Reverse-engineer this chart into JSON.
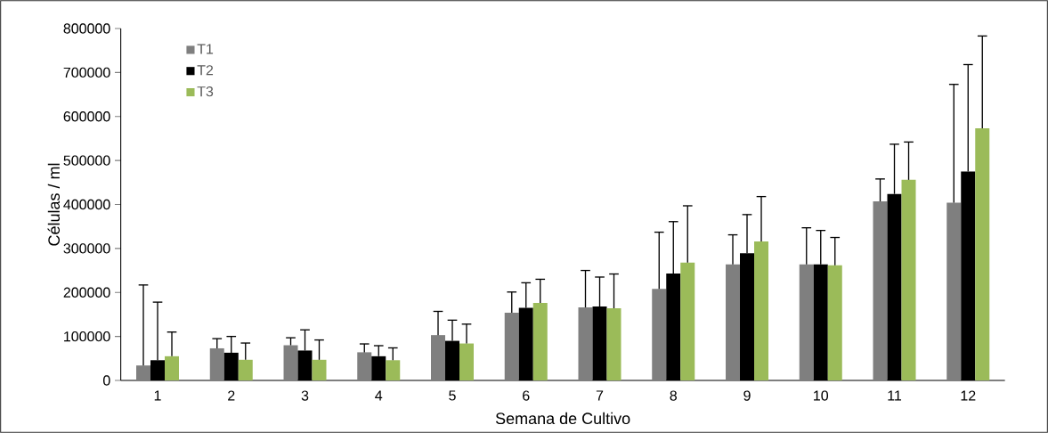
{
  "chart_data": {
    "type": "bar",
    "xlabel": "Semana de Cultivo",
    "ylabel": "Células / ml",
    "categories": [
      "1",
      "2",
      "3",
      "4",
      "5",
      "6",
      "7",
      "8",
      "9",
      "10",
      "11",
      "12"
    ],
    "ylim": [
      0,
      800000
    ],
    "yticks": [
      0,
      100000,
      200000,
      300000,
      400000,
      500000,
      600000,
      700000,
      800000
    ],
    "legend": "top left",
    "grid": false,
    "series": [
      {
        "name": "T1",
        "color": "#7f7f7f",
        "values": [
          34000,
          73000,
          80000,
          64000,
          103000,
          154000,
          166000,
          208000,
          264000,
          264000,
          407000,
          404000
        ],
        "errors": [
          [
            34000,
            217000
          ],
          [
            73000,
            95000
          ],
          [
            80000,
            97000
          ],
          [
            64000,
            83000
          ],
          [
            103000,
            157000
          ],
          [
            154000,
            201000
          ],
          [
            166000,
            250000
          ],
          [
            208000,
            337000
          ],
          [
            264000,
            331000
          ],
          [
            264000,
            347000
          ],
          [
            407000,
            458000
          ],
          [
            404000,
            673000
          ]
        ]
      },
      {
        "name": "T2",
        "color": "#000000",
        "values": [
          46000,
          63000,
          68000,
          55000,
          90000,
          165000,
          168000,
          243000,
          289000,
          264000,
          424000,
          475000
        ],
        "errors": [
          [
            46000,
            178000
          ],
          [
            63000,
            100000
          ],
          [
            68000,
            115000
          ],
          [
            55000,
            79000
          ],
          [
            90000,
            137000
          ],
          [
            165000,
            222000
          ],
          [
            168000,
            235000
          ],
          [
            243000,
            361000
          ],
          [
            289000,
            377000
          ],
          [
            264000,
            341000
          ],
          [
            424000,
            537000
          ],
          [
            475000,
            718000
          ]
        ]
      },
      {
        "name": "T3",
        "color": "#9bbb59",
        "values": [
          55000,
          47000,
          47000,
          46000,
          84000,
          176000,
          164000,
          268000,
          316000,
          262000,
          456000,
          573000
        ],
        "errors": [
          [
            55000,
            110000
          ],
          [
            47000,
            85000
          ],
          [
            47000,
            92000
          ],
          [
            46000,
            74000
          ],
          [
            84000,
            128000
          ],
          [
            176000,
            230000
          ],
          [
            164000,
            242000
          ],
          [
            268000,
            397000
          ],
          [
            316000,
            418000
          ],
          [
            262000,
            325000
          ],
          [
            456000,
            542000
          ],
          [
            573000,
            783000
          ]
        ]
      }
    ]
  }
}
